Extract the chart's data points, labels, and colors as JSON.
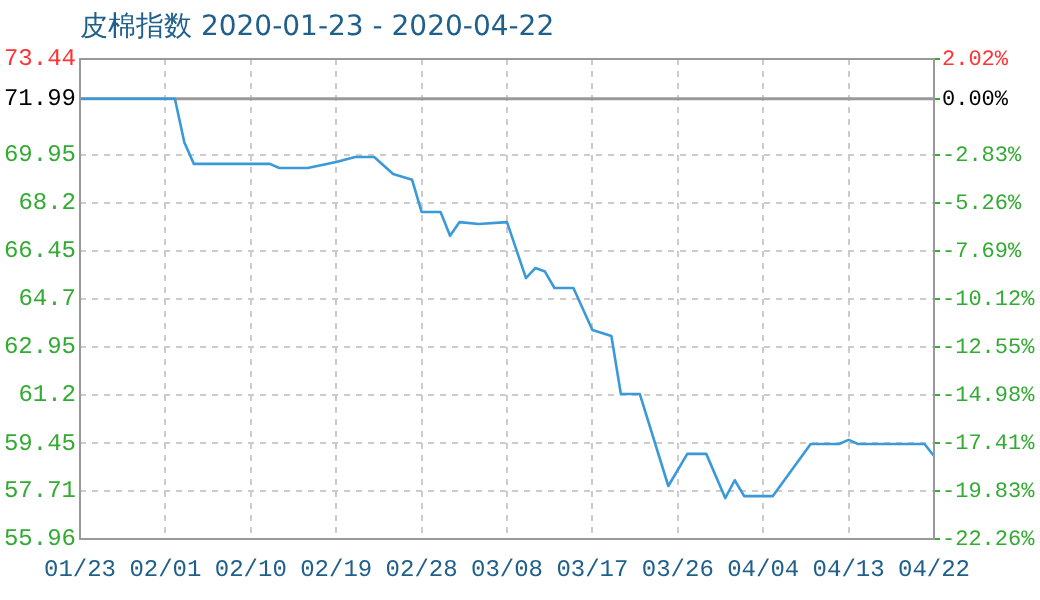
{
  "chart_data": {
    "type": "line",
    "title": "皮棉指数 2020-01-23 - 2020-04-22",
    "x": [
      "2020-01-23",
      "2020-02-02",
      "2020-02-03",
      "2020-02-04",
      "2020-02-12",
      "2020-02-13",
      "2020-02-16",
      "2020-02-19",
      "2020-02-21",
      "2020-02-23",
      "2020-02-25",
      "2020-02-27",
      "2020-02-28",
      "2020-03-01",
      "2020-03-02",
      "2020-03-03",
      "2020-03-05",
      "2020-03-08",
      "2020-03-10",
      "2020-03-11",
      "2020-03-12",
      "2020-03-13",
      "2020-03-15",
      "2020-03-17",
      "2020-03-19",
      "2020-03-20",
      "2020-03-22",
      "2020-03-25",
      "2020-03-27",
      "2020-03-29",
      "2020-03-31",
      "2020-04-01",
      "2020-04-02",
      "2020-04-05",
      "2020-04-09",
      "2020-04-12",
      "2020-04-13",
      "2020-04-14",
      "2020-04-21",
      "2020-04-22"
    ],
    "series": [
      {
        "color": "#3a9ad9",
        "values": [
          71.99,
          71.99,
          70.4,
          69.62,
          69.62,
          69.47,
          69.47,
          69.69,
          69.87,
          69.87,
          69.25,
          69.04,
          67.87,
          67.87,
          67.0,
          67.5,
          67.43,
          67.5,
          65.46,
          65.83,
          65.7,
          65.1,
          65.1,
          63.57,
          63.35,
          61.24,
          61.24,
          57.89,
          59.06,
          59.06,
          57.45,
          58.1,
          57.52,
          57.52,
          59.42,
          59.42,
          59.57,
          59.42,
          59.42,
          58.98
        ]
      }
    ],
    "xlim": [
      "2020-01-23",
      "2020-04-22"
    ],
    "xticks": [
      {
        "value": "2020-01-23",
        "label": "01/23"
      },
      {
        "value": "2020-02-01",
        "label": "02/01"
      },
      {
        "value": "2020-02-10",
        "label": "02/10"
      },
      {
        "value": "2020-02-19",
        "label": "02/19"
      },
      {
        "value": "2020-02-28",
        "label": "02/28"
      },
      {
        "value": "2020-03-08",
        "label": "03/08"
      },
      {
        "value": "2020-03-17",
        "label": "03/17"
      },
      {
        "value": "2020-03-26",
        "label": "03/26"
      },
      {
        "value": "2020-04-04",
        "label": "04/04"
      },
      {
        "value": "2020-04-13",
        "label": "04/13"
      },
      {
        "value": "2020-04-22",
        "label": "04/22"
      }
    ],
    "ylim": [
      55.96,
      73.44
    ],
    "yticks": [
      55.96,
      57.71,
      59.45,
      {
        "value": 61.2,
        "label": "61.2"
      },
      62.95,
      {
        "value": 64.7,
        "label": "64.7"
      },
      66.45,
      {
        "value": 68.2,
        "label": "68.2"
      },
      69.95,
      71.99,
      73.44
    ],
    "y2lim": [
      -22.26,
      2.02
    ],
    "y2ticks": [
      {
        "value": -22.26,
        "label": "-22.26%"
      },
      {
        "value": -19.83,
        "label": "-19.83%"
      },
      {
        "value": -17.41,
        "label": "-17.41%"
      },
      {
        "value": -14.98,
        "label": "-14.98%"
      },
      {
        "value": -12.55,
        "label": "-12.55%"
      },
      {
        "value": -10.12,
        "label": "-10.12%"
      },
      {
        "value": -7.69,
        "label": "-7.69%"
      },
      {
        "value": -5.26,
        "label": "-5.26%"
      },
      {
        "value": -2.83,
        "label": "-2.83%"
      },
      {
        "value": 0,
        "label": "0.00%"
      },
      {
        "value": 2.02,
        "label": "2.02%"
      }
    ],
    "ref_lines": [
      {
        "axis": "y",
        "value": 71.99,
        "color": "#999999"
      }
    ],
    "grid": true,
    "legend": false,
    "marker": "none",
    "line_style": "solid"
  }
}
